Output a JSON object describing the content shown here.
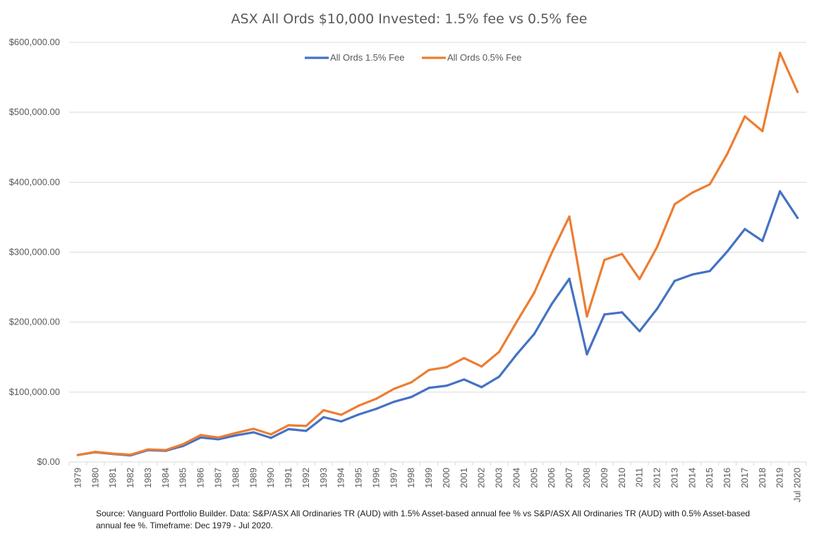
{
  "chart_data": {
    "type": "line",
    "title": "ASX All Ords $10,000 Invested: 1.5% fee vs 0.5% fee",
    "xlabel": "",
    "ylabel": "",
    "ylim": [
      0,
      600000
    ],
    "yticks": [
      0,
      100000,
      200000,
      300000,
      400000,
      500000,
      600000
    ],
    "ytick_labels": [
      "$0.00",
      "$100,000.00",
      "$200,000.00",
      "$300,000.00",
      "$400,000.00",
      "$500,000.00",
      "$600,000.00"
    ],
    "grid": "horizontal",
    "legend_position": "top-center",
    "categories": [
      "1979",
      "1980",
      "1981",
      "1982",
      "1983",
      "1984",
      "1985",
      "1986",
      "1987",
      "1988",
      "1989",
      "1990",
      "1991",
      "1992",
      "1993",
      "1994",
      "1995",
      "1996",
      "1997",
      "1998",
      "1999",
      "2000",
      "2001",
      "2002",
      "2003",
      "2004",
      "2005",
      "2006",
      "2007",
      "2008",
      "2009",
      "2010",
      "2011",
      "2012",
      "2013",
      "2014",
      "2015",
      "2016",
      "2017",
      "2018",
      "2019",
      "Jul 2020"
    ],
    "series": [
      {
        "name": "All Ords 1.5% Fee",
        "color": "#4472C4",
        "values": [
          10000,
          14000,
          11500,
          9500,
          17000,
          16000,
          23000,
          35000,
          32500,
          38000,
          42500,
          34500,
          47000,
          44500,
          64000,
          58000,
          68000,
          76000,
          86000,
          93000,
          106000,
          109000,
          118000,
          107000,
          122000,
          154000,
          183000,
          226000,
          262000,
          154000,
          211000,
          214000,
          187000,
          219000,
          259000,
          268000,
          273000,
          301000,
          333000,
          316000,
          387000,
          349000
        ]
      },
      {
        "name": "All Ords 0.5% Fee",
        "color": "#ED7D31",
        "values": [
          10000,
          14500,
          12000,
          10500,
          18000,
          17000,
          25500,
          38500,
          35000,
          41500,
          47500,
          39500,
          52500,
          51500,
          74000,
          67500,
          80500,
          90500,
          104500,
          114000,
          131500,
          135500,
          148500,
          136500,
          157500,
          200500,
          242000,
          299000,
          351000,
          208000,
          289000,
          297500,
          261500,
          307500,
          368500,
          385000,
          397000,
          440500,
          494000,
          473000,
          585000,
          529000
        ]
      }
    ],
    "source_note": "Source: Vanguard Portfolio Builder. Data: S&P/ASX All Ordinaries TR (AUD) with 1.5% Asset-based annual fee % vs S&P/ASX All Ordinaries TR (AUD) with 0.5% Asset-based annual fee %. Timeframe: Dec 1979 - Jul 2020."
  }
}
